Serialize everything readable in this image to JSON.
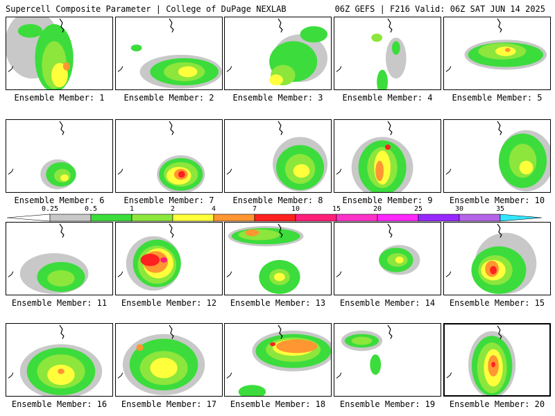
{
  "header": {
    "left": "Supercell Composite Parameter | College of DuPage NEXLAB",
    "right": "06Z GEFS | F216 Valid: 06Z SAT JUN 14 2025"
  },
  "member_label_prefix": "Ensemble Member: ",
  "selected_member": 20,
  "colorbar": {
    "ticks": [
      "0.25",
      "0.5",
      "1",
      "2",
      "4",
      "7",
      "10",
      "15",
      "20",
      "25",
      "30",
      "35"
    ],
    "colors": [
      "#c8c8c8",
      "#3cdc3c",
      "#8ce63c",
      "#ffff3c",
      "#ff9632",
      "#ff2020",
      "#ff1e78",
      "#ff32c8",
      "#ff28ff",
      "#9628ff",
      "#b464e6",
      "#32e6ff"
    ]
  },
  "members": [
    {
      "id": 1,
      "label": "Ensemble Member: 1"
    },
    {
      "id": 2,
      "label": "Ensemble Member: 2"
    },
    {
      "id": 3,
      "label": "Ensemble Member: 3"
    },
    {
      "id": 4,
      "label": "Ensemble Member: 4"
    },
    {
      "id": 5,
      "label": "Ensemble Member: 5"
    },
    {
      "id": 6,
      "label": "Ensemble Member: 6"
    },
    {
      "id": 7,
      "label": "Ensemble Member: 7"
    },
    {
      "id": 8,
      "label": "Ensemble Member: 8"
    },
    {
      "id": 9,
      "label": "Ensemble Member: 9"
    },
    {
      "id": 10,
      "label": "Ensemble Member: 10"
    },
    {
      "id": 11,
      "label": "Ensemble Member: 11"
    },
    {
      "id": 12,
      "label": "Ensemble Member: 12"
    },
    {
      "id": 13,
      "label": "Ensemble Member: 13"
    },
    {
      "id": 14,
      "label": "Ensemble Member: 14"
    },
    {
      "id": 15,
      "label": "Ensemble Member: 15"
    },
    {
      "id": 16,
      "label": "Ensemble Member: 16"
    },
    {
      "id": 17,
      "label": "Ensemble Member: 17"
    },
    {
      "id": 18,
      "label": "Ensemble Member: 18"
    },
    {
      "id": 19,
      "label": "Ensemble Member: 19"
    },
    {
      "id": 20,
      "label": "Ensemble Member: 20"
    }
  ]
}
